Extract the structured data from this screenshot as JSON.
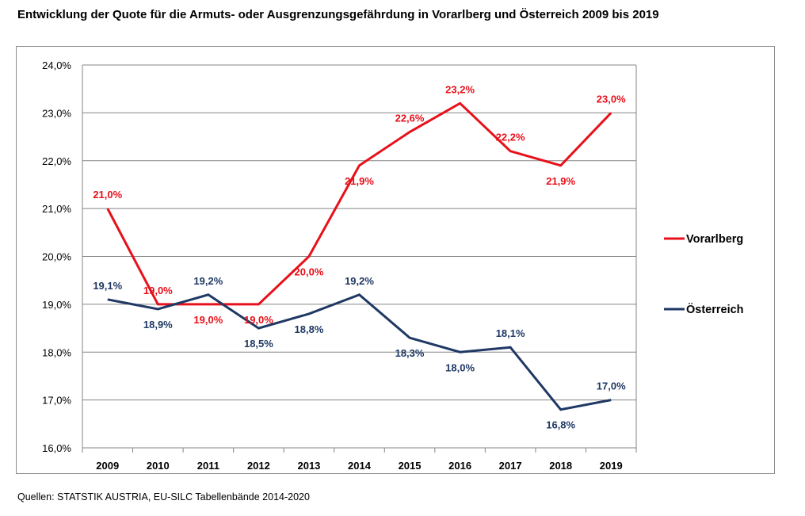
{
  "title": "Entwicklung der Quote für die Armuts- oder Ausgrenzungsgefährdung in Vorarlberg und Österreich 2009 bis 2019",
  "source": "Quellen: STATSTIK AUSTRIA, EU-SILC Tabellenbände 2014-2020",
  "chart_data": {
    "type": "line",
    "title": "Entwicklung der Quote für die Armuts- oder Ausgrenzungsgefährdung in Vorarlberg und Österreich 2009 bis 2019",
    "xlabel": "",
    "ylabel": "",
    "categories": [
      "2009",
      "2010",
      "2011",
      "2012",
      "2013",
      "2014",
      "2015",
      "2016",
      "2017",
      "2018",
      "2019"
    ],
    "y_ticks": [
      "16,0%",
      "17,0%",
      "18,0%",
      "19,0%",
      "20,0%",
      "21,0%",
      "22,0%",
      "23,0%",
      "24,0%"
    ],
    "ylim": [
      16,
      24
    ],
    "grid": true,
    "legend_position": "right",
    "series": [
      {
        "name": "Vorarlberg",
        "color": "#e8101a",
        "values": [
          21.0,
          19.0,
          19.0,
          19.0,
          20.0,
          21.9,
          22.6,
          23.2,
          22.2,
          21.9,
          23.0
        ],
        "labels": [
          "21,0%",
          "19,0%",
          "19,0%",
          "19,0%",
          "20,0%",
          "21,9%",
          "22,6%",
          "23,2%",
          "22,2%",
          "21,9%",
          "23,0%"
        ],
        "label_positions": [
          "above",
          "above",
          "below",
          "below",
          "below",
          "below",
          "above",
          "above",
          "above",
          "below",
          "above"
        ]
      },
      {
        "name": "Österreich",
        "color": "#1f3864",
        "values": [
          19.1,
          18.9,
          19.2,
          18.5,
          18.8,
          19.2,
          18.3,
          18.0,
          18.1,
          16.8,
          17.0
        ],
        "labels": [
          "19,1%",
          "18,9%",
          "19,2%",
          "18,5%",
          "18,8%",
          "19,2%",
          "18,3%",
          "18,0%",
          "18,1%",
          "16,8%",
          "17,0%"
        ],
        "label_positions": [
          "above",
          "below",
          "above",
          "below",
          "below",
          "above",
          "below",
          "below",
          "above",
          "below",
          "above"
        ]
      }
    ]
  }
}
